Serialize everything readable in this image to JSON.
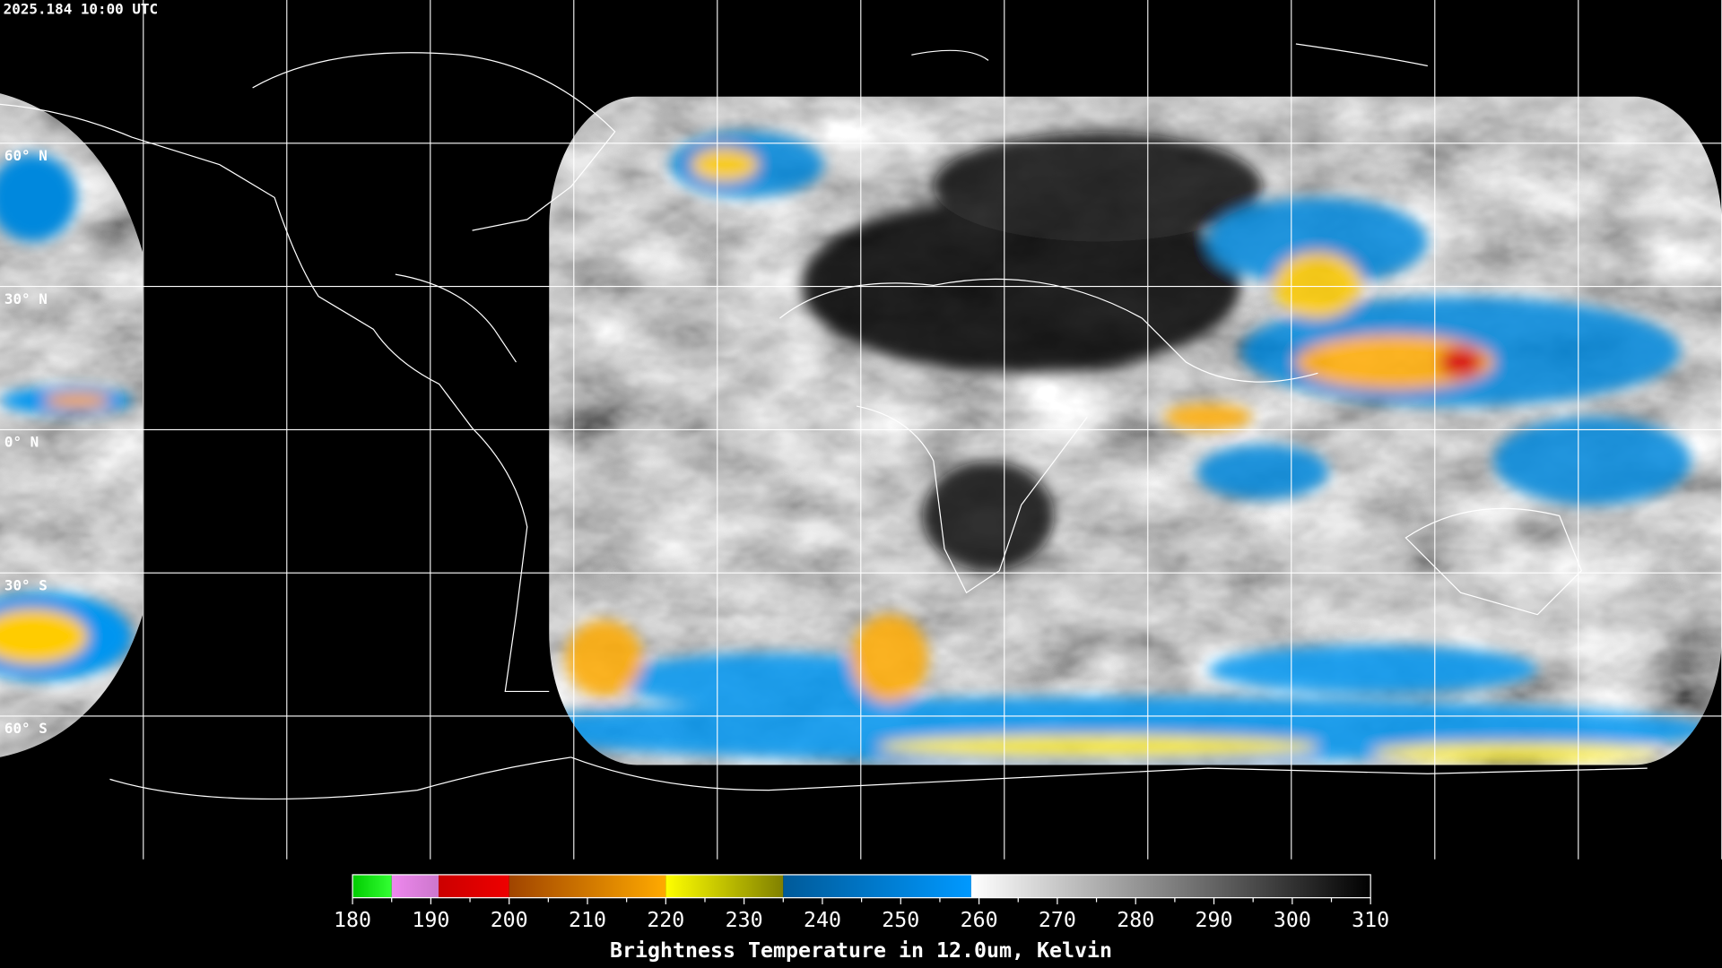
{
  "header": {
    "timestamp": "2025.184 10:00 UTC"
  },
  "map": {
    "latitudes": [
      {
        "value": 60,
        "label": "60° N"
      },
      {
        "value": 30,
        "label": "30° N"
      },
      {
        "value": 0,
        "label": "0° N"
      },
      {
        "value": -30,
        "label": "30° S"
      },
      {
        "value": -60,
        "label": "60° S"
      }
    ]
  },
  "colorbar": {
    "range": [
      180,
      310
    ],
    "ticks": [
      180,
      190,
      200,
      210,
      220,
      230,
      240,
      250,
      260,
      270,
      280,
      290,
      300,
      310
    ],
    "segments": [
      {
        "from": 180,
        "to": 185,
        "colors": [
          "#00cc00",
          "#33ff33"
        ]
      },
      {
        "from": 185,
        "to": 191,
        "colors": [
          "#ee88ee",
          "#cc77cc"
        ]
      },
      {
        "from": 191,
        "to": 200,
        "colors": [
          "#cc0000",
          "#ee0000"
        ]
      },
      {
        "from": 200,
        "to": 220,
        "colors": [
          "#a04400",
          "#ffaa00"
        ]
      },
      {
        "from": 220,
        "to": 235,
        "colors": [
          "#ffff00",
          "#808000"
        ]
      },
      {
        "from": 235,
        "to": 259,
        "colors": [
          "#005a99",
          "#0099ff"
        ]
      },
      {
        "from": 259,
        "to": 310,
        "colors": [
          "#ffffff",
          "#000000"
        ]
      }
    ],
    "title": "Brightness Temperature in 12.0um, Kelvin"
  }
}
